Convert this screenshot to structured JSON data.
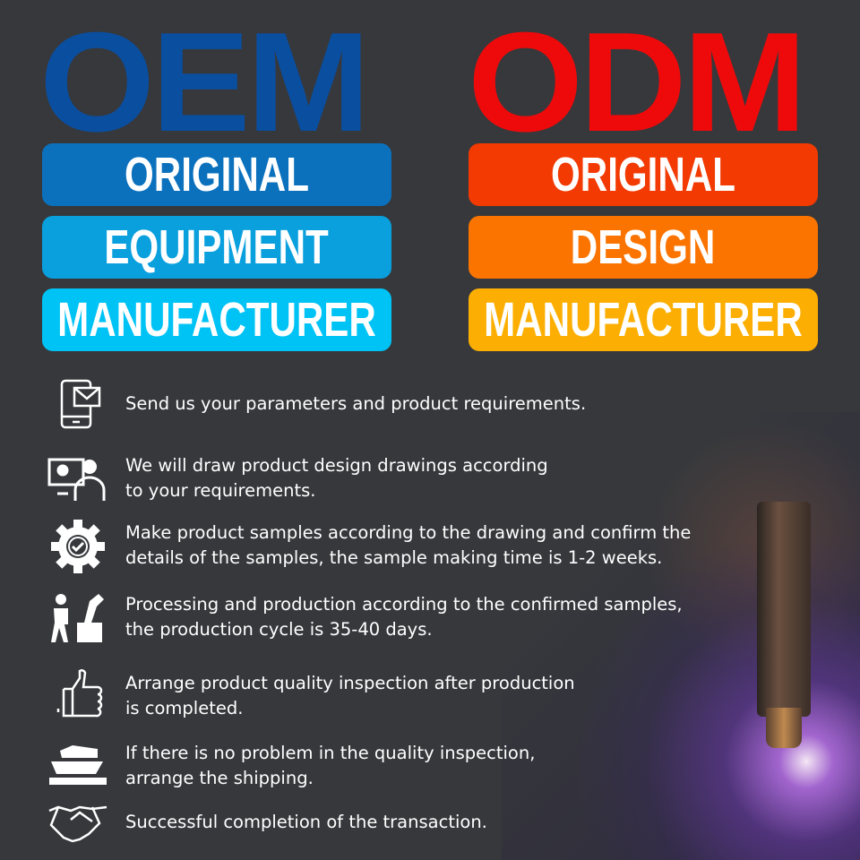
{
  "oem": {
    "title": "OEM",
    "lines": [
      "ORIGINAL",
      "EQUIPMENT",
      "MANUFACTURER"
    ],
    "colors": {
      "title": "#0a4ea0",
      "pills": [
        "#0b71bd",
        "#0aa0de",
        "#00c3f5"
      ]
    }
  },
  "odm": {
    "title": "ODM",
    "lines": [
      "ORIGINAL",
      "DESIGN",
      "MANUFACTURER"
    ],
    "colors": {
      "title": "#ee0a0a",
      "pills": [
        "#f23a02",
        "#fb7400",
        "#fcaf02"
      ]
    }
  },
  "steps": [
    {
      "icon": "phone-mail-icon",
      "lines": [
        "Send us your parameters and product requirements."
      ]
    },
    {
      "icon": "designer-computer-icon",
      "lines": [
        "We will draw product design drawings according",
        "to your requirements."
      ]
    },
    {
      "icon": "gear-check-icon",
      "lines": [
        "Make product samples according to the drawing and confirm the",
        "details of the samples, the sample making time is 1-2 weeks."
      ]
    },
    {
      "icon": "worker-robot-arm-icon",
      "lines": [
        "Processing and production according to the confirmed samples,",
        "the production cycle is 35-40 days."
      ]
    },
    {
      "icon": "thumbs-up-icon",
      "lines": [
        "Arrange product quality inspection after production",
        "is completed."
      ]
    },
    {
      "icon": "cargo-ship-icon",
      "lines": [
        "If there is no problem in the quality inspection,",
        "arrange the shipping."
      ]
    },
    {
      "icon": "handshake-icon",
      "lines": [
        "Successful completion of the transaction."
      ]
    }
  ]
}
